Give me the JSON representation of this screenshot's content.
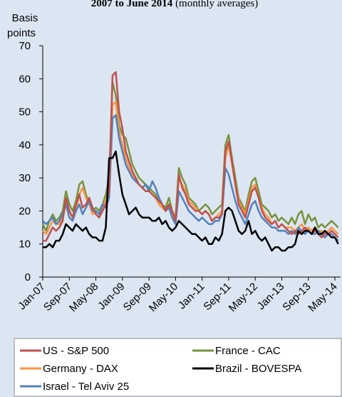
{
  "chart_data": {
    "type": "line",
    "title": "2007 to June 2014",
    "subtitle": "(monthly averages)",
    "y_label": [
      "Basis",
      "points"
    ],
    "categories": [
      "Jan-07",
      null,
      null,
      null,
      null,
      null,
      null,
      null,
      "Sep-07",
      null,
      null,
      null,
      null,
      null,
      null,
      null,
      "May-08",
      null,
      null,
      null,
      null,
      null,
      null,
      null,
      "Jan-09",
      null,
      null,
      null,
      null,
      null,
      null,
      null,
      "Sep-09",
      null,
      null,
      null,
      null,
      null,
      null,
      null,
      "May-10",
      null,
      null,
      null,
      null,
      null,
      null,
      null,
      "Jan-11",
      null,
      null,
      null,
      null,
      null,
      null,
      null,
      "Sep-11",
      null,
      null,
      null,
      null,
      null,
      null,
      null,
      "May-12",
      null,
      null,
      null,
      null,
      null,
      null,
      null,
      "Jan-13",
      null,
      null,
      null,
      null,
      null,
      null,
      null,
      "Sep-13",
      null,
      null,
      null,
      null,
      null,
      null,
      null,
      "May-14",
      null
    ],
    "ylim": [
      0,
      70
    ],
    "yticks": [
      0,
      10,
      20,
      30,
      40,
      50,
      60,
      70
    ],
    "grid": false,
    "series": [
      {
        "name": "US - S&P 500",
        "color": "#c0504d",
        "values": [
          11,
          11,
          13,
          15,
          14,
          15,
          17,
          24,
          20,
          18,
          22,
          25,
          21,
          22,
          24,
          21,
          19,
          18,
          20,
          22,
          26,
          61,
          62,
          50,
          45,
          38,
          35,
          32,
          30,
          28,
          27,
          26,
          26,
          25,
          24,
          23,
          22,
          20,
          22,
          20,
          17,
          31,
          27,
          25,
          22,
          21,
          20,
          20,
          19,
          20,
          19,
          17,
          18,
          18,
          19,
          38,
          41,
          35,
          28,
          22,
          20,
          18,
          22,
          26,
          27,
          24,
          20,
          18,
          17,
          16,
          17,
          15,
          16,
          15,
          14,
          13,
          14,
          13,
          14,
          15,
          14,
          13,
          14,
          13,
          12,
          13,
          13,
          14,
          13,
          12
        ]
      },
      {
        "name": "France - CAC",
        "color": "#77933c",
        "values": [
          16,
          14,
          17,
          19,
          17,
          18,
          20,
          26,
          22,
          20,
          23,
          28,
          29,
          25,
          22,
          20,
          21,
          20,
          22,
          25,
          30,
          59,
          55,
          46,
          43,
          42,
          38,
          34,
          32,
          30,
          29,
          28,
          27,
          26,
          25,
          23,
          22,
          21,
          24,
          20,
          18,
          33,
          30,
          28,
          24,
          23,
          22,
          20,
          21,
          22,
          21,
          19,
          20,
          21,
          22,
          40,
          43,
          36,
          30,
          24,
          22,
          20,
          25,
          29,
          30,
          26,
          22,
          21,
          20,
          18,
          19,
          17,
          18,
          17,
          16,
          18,
          16,
          19,
          20,
          16,
          19,
          17,
          18,
          15,
          16,
          15,
          16,
          17,
          16,
          15
        ]
      },
      {
        "name": "Germany - DAX",
        "color": "#f79646",
        "values": [
          14,
          13,
          15,
          17,
          16,
          16,
          18,
          22,
          20,
          18,
          20,
          25,
          27,
          24,
          22,
          19,
          20,
          19,
          21,
          23,
          27,
          52,
          53,
          44,
          40,
          36,
          33,
          31,
          29,
          28,
          27,
          26,
          26,
          25,
          24,
          22,
          21,
          20,
          22,
          19,
          17,
          30,
          28,
          26,
          23,
          22,
          21,
          20,
          19,
          20,
          19,
          17,
          18,
          19,
          20,
          36,
          40,
          34,
          28,
          23,
          21,
          19,
          23,
          27,
          28,
          24,
          21,
          19,
          18,
          16,
          17,
          15,
          16,
          15,
          15,
          15,
          14,
          15,
          16,
          14,
          15,
          14,
          15,
          14,
          14,
          13,
          14,
          15,
          14,
          13
        ]
      },
      {
        "name": "Brazil - BOVESPA",
        "color": "#000000",
        "values": [
          9,
          9,
          10,
          9,
          11,
          11,
          13,
          16,
          15,
          14,
          16,
          15,
          14,
          15,
          13,
          12,
          12,
          11,
          11,
          15,
          36,
          36,
          38,
          31,
          25,
          22,
          19,
          20,
          21,
          19,
          18,
          18,
          18,
          17,
          17,
          18,
          16,
          17,
          15,
          14,
          15,
          17,
          16,
          15,
          14,
          13,
          13,
          12,
          11,
          12,
          10,
          10,
          12,
          11,
          13,
          20,
          21,
          20,
          17,
          14,
          13,
          14,
          17,
          13,
          14,
          12,
          11,
          12,
          10,
          8,
          9,
          9,
          8,
          8,
          9,
          9,
          10,
          14,
          13,
          14,
          14,
          13,
          15,
          13,
          13,
          14,
          13,
          12,
          12,
          10
        ]
      },
      {
        "name": "Israel - Tel Aviv 25",
        "color": "#4f81bd",
        "values": [
          17,
          16,
          17,
          18,
          16,
          17,
          19,
          22,
          18,
          17,
          20,
          22,
          19,
          21,
          23,
          20,
          20,
          19,
          22,
          21,
          24,
          48,
          49,
          42,
          38,
          34,
          32,
          30,
          29,
          28,
          27,
          28,
          26,
          29,
          27,
          24,
          22,
          20,
          21,
          18,
          16,
          26,
          24,
          22,
          20,
          19,
          18,
          17,
          18,
          17,
          16,
          16,
          17,
          17,
          19,
          33,
          31,
          27,
          23,
          20,
          18,
          16,
          19,
          22,
          23,
          20,
          18,
          17,
          16,
          15,
          15,
          14,
          14,
          14,
          13,
          14,
          13,
          15,
          14,
          13,
          14,
          13,
          13,
          14,
          13,
          12,
          13,
          13,
          12,
          11
        ]
      }
    ]
  }
}
